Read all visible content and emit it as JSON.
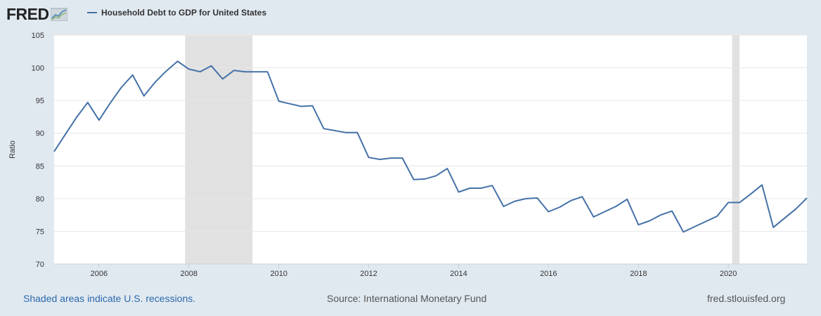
{
  "brand": {
    "logo_text": "FRED"
  },
  "legend": {
    "label": "Household Debt to GDP for United States",
    "color": "#4572a7"
  },
  "footer": {
    "recession_note": "Shaded areas indicate U.S. recessions.",
    "source": "Source: International Monetary Fund",
    "site": "fred.stlouisfed.org"
  },
  "chart_data": {
    "type": "line",
    "title": "",
    "xlabel": "",
    "ylabel": "Ratio",
    "ylim": [
      70,
      105
    ],
    "y_ticks": [
      70,
      75,
      80,
      85,
      90,
      95,
      100,
      105
    ],
    "x_ticks": [
      "2006",
      "2008",
      "2010",
      "2012",
      "2014",
      "2016",
      "2018",
      "2020"
    ],
    "xlim": [
      "2005-01-01",
      "2021-10-01"
    ],
    "grid": "horizontal",
    "recessions": [
      {
        "start": "2007-12-01",
        "end": "2009-06-01"
      },
      {
        "start": "2020-02-01",
        "end": "2020-04-01"
      }
    ],
    "series": [
      {
        "name": "Household Debt to GDP for United States",
        "color": "#4572a7",
        "x": [
          "2005-01-01",
          "2005-04-01",
          "2005-07-01",
          "2005-10-01",
          "2006-01-01",
          "2006-04-01",
          "2006-07-01",
          "2006-10-01",
          "2007-01-01",
          "2007-04-01",
          "2007-07-01",
          "2007-10-01",
          "2008-01-01",
          "2008-04-01",
          "2008-07-01",
          "2008-10-01",
          "2009-01-01",
          "2009-04-01",
          "2009-07-01",
          "2009-10-01",
          "2010-01-01",
          "2010-04-01",
          "2010-07-01",
          "2010-10-01",
          "2011-01-01",
          "2011-04-01",
          "2011-07-01",
          "2011-10-01",
          "2012-01-01",
          "2012-04-01",
          "2012-07-01",
          "2012-10-01",
          "2013-01-01",
          "2013-04-01",
          "2013-07-01",
          "2013-10-01",
          "2014-01-01",
          "2014-04-01",
          "2014-07-01",
          "2014-10-01",
          "2015-01-01",
          "2015-04-01",
          "2015-07-01",
          "2015-10-01",
          "2016-01-01",
          "2016-04-01",
          "2016-07-01",
          "2016-10-01",
          "2017-01-01",
          "2017-04-01",
          "2017-07-01",
          "2017-10-01",
          "2018-01-01",
          "2018-04-01",
          "2018-07-01",
          "2018-10-01",
          "2019-01-01",
          "2019-04-01",
          "2019-07-01",
          "2019-10-01",
          "2020-01-01",
          "2020-04-01",
          "2020-07-01",
          "2020-10-01",
          "2021-01-01",
          "2021-04-01",
          "2021-07-01",
          "2021-10-01"
        ],
        "values": [
          87.2,
          89.8,
          92.4,
          94.7,
          92.0,
          94.6,
          97.0,
          98.9,
          95.7,
          97.8,
          99.5,
          101.0,
          99.8,
          99.4,
          100.3,
          98.3,
          99.6,
          99.4,
          99.4,
          99.4,
          94.9,
          94.5,
          94.1,
          94.2,
          90.7,
          90.4,
          90.1,
          90.1,
          86.3,
          86.0,
          86.2,
          86.2,
          82.9,
          83.0,
          83.5,
          84.6,
          81.0,
          81.6,
          81.6,
          82.0,
          78.8,
          79.6,
          80.0,
          80.1,
          78.0,
          78.7,
          79.7,
          80.3,
          77.2,
          78.0,
          78.8,
          79.9,
          76.0,
          76.6,
          77.5,
          78.1,
          74.9,
          75.7,
          76.5,
          77.3,
          79.4,
          79.4,
          80.7,
          82.1,
          75.6,
          77.0,
          78.4,
          80.1
        ]
      }
    ]
  }
}
